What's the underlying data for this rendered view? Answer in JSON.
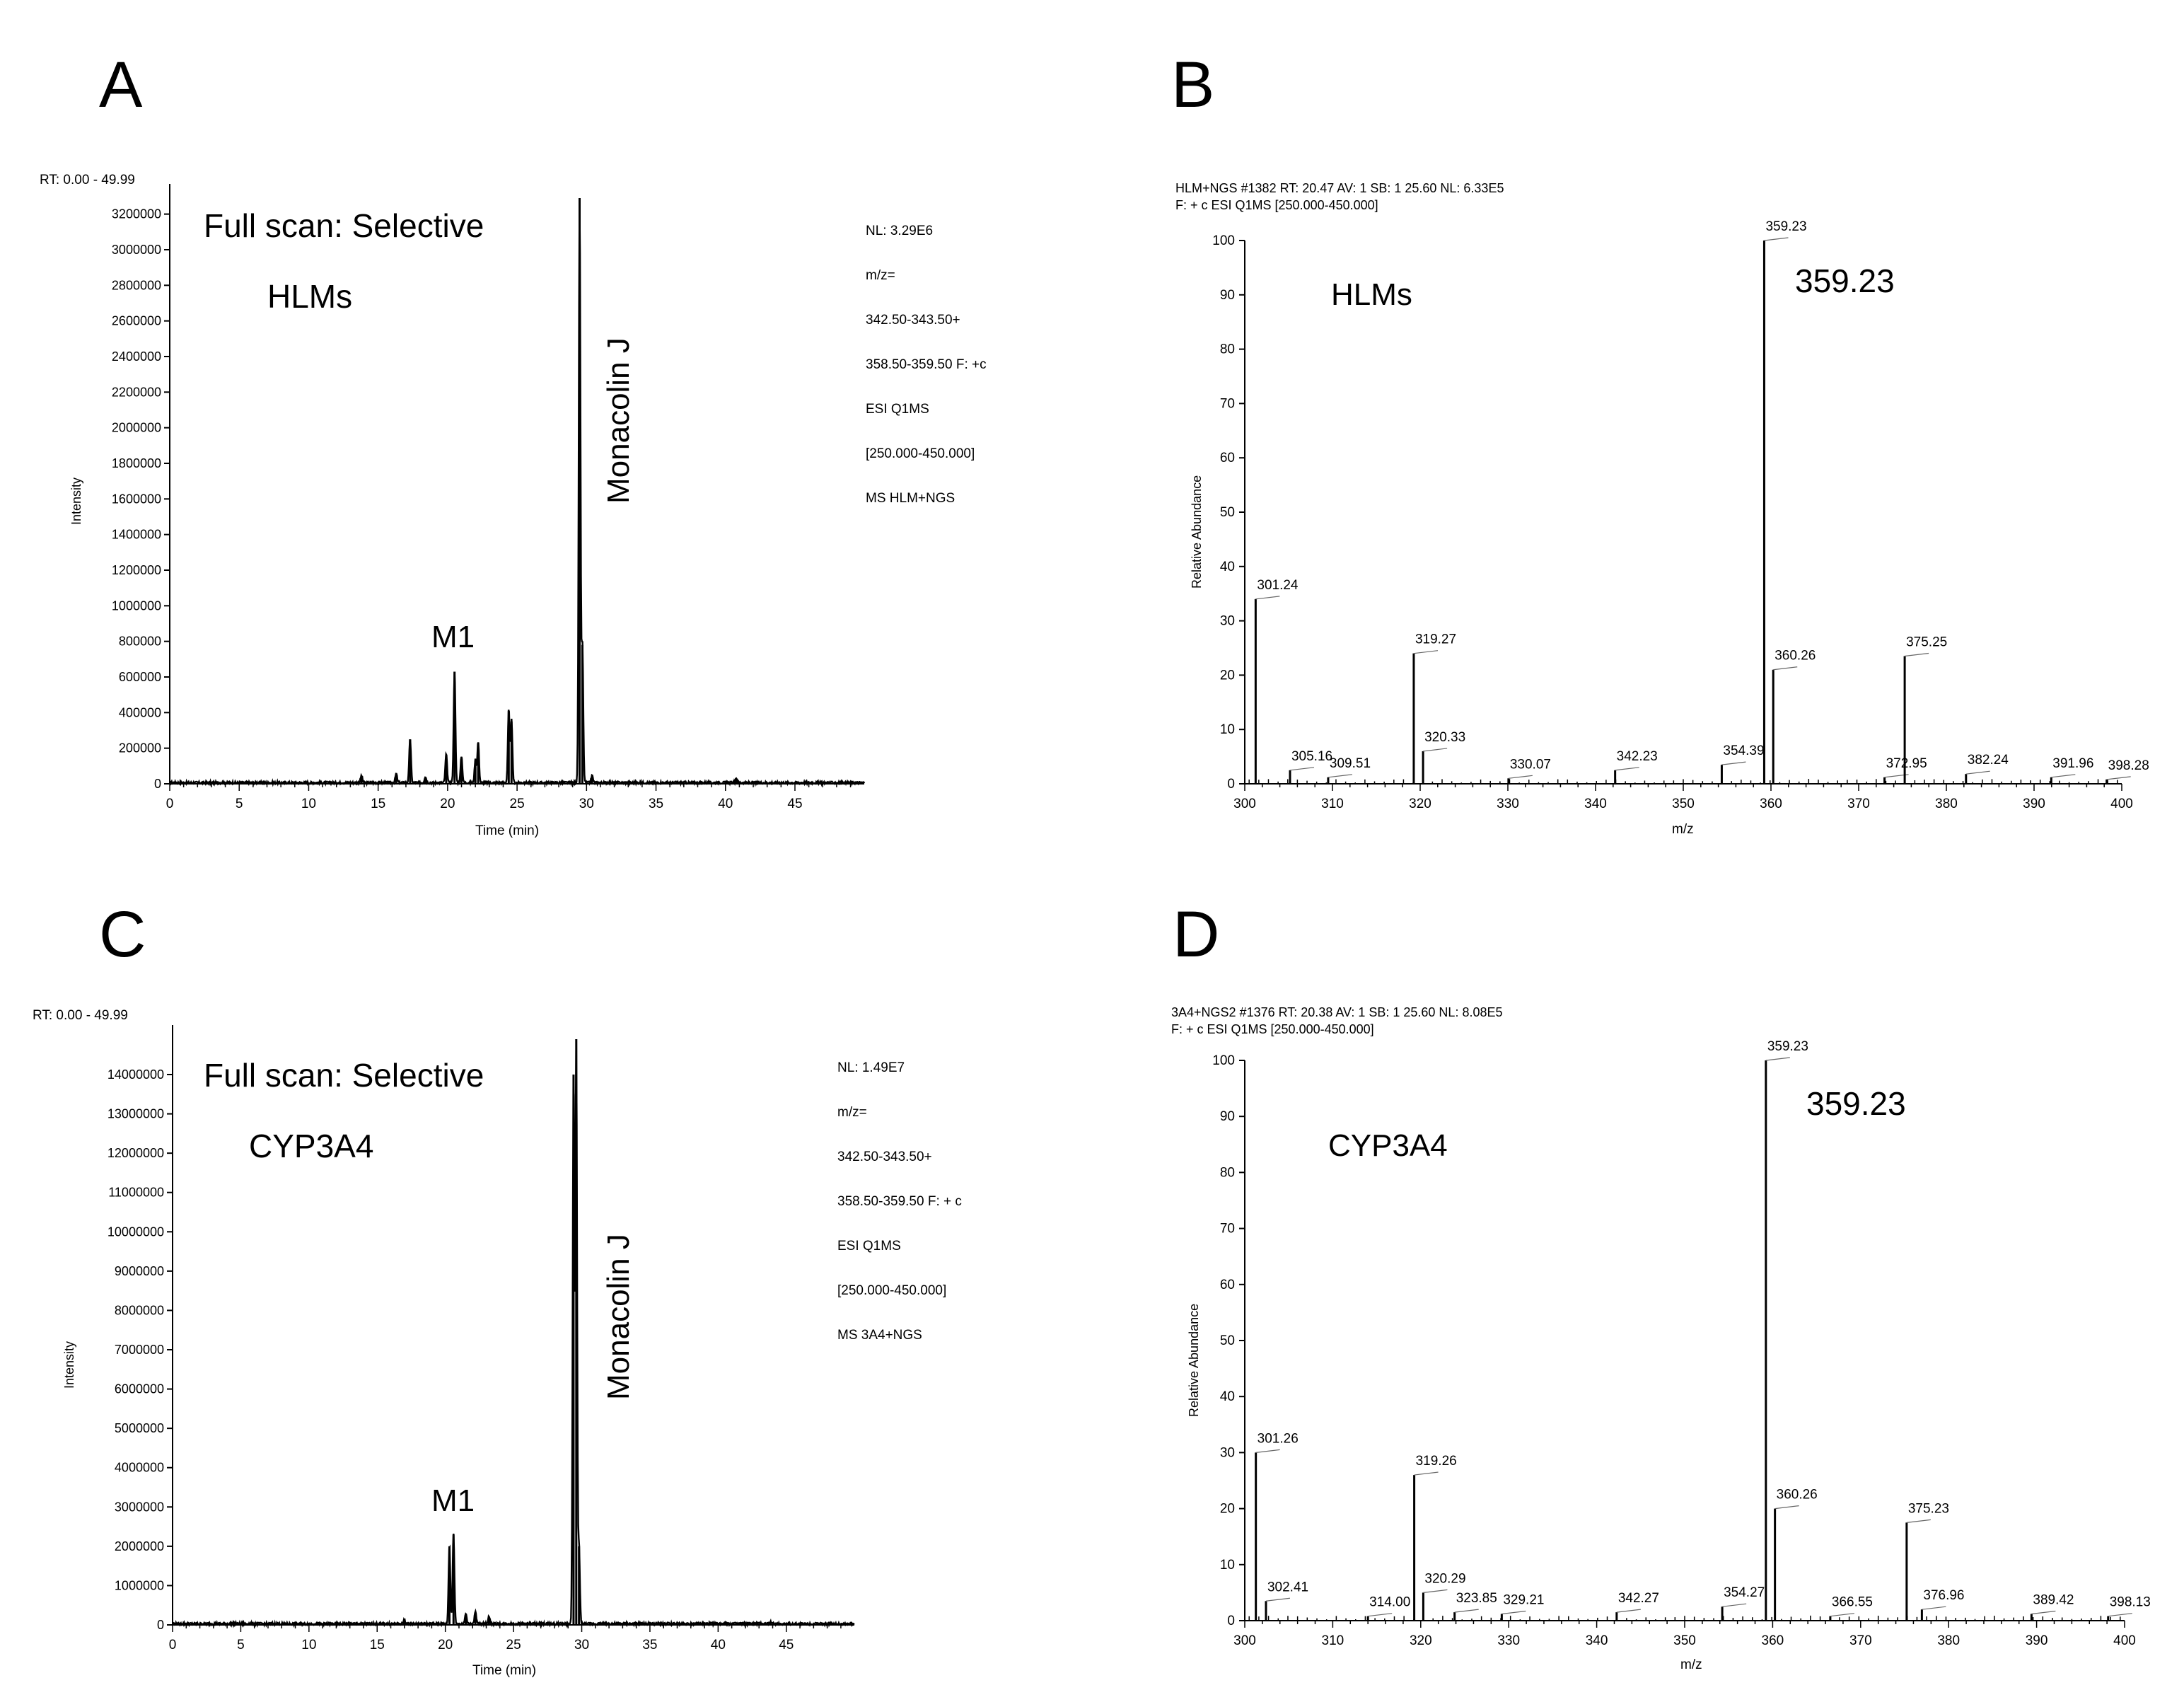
{
  "panels": [
    {
      "letter": "A",
      "kind": "chromatogram",
      "corner_label": "RT: 0.00 - 49.99",
      "info_lines": [
        "NL: 3.29E6",
        "m/z=",
        "342.50-343.50+",
        "358.50-359.50 F: +c",
        "ESI Q1MS",
        "[250.000-450.000]",
        "MS HLM+NGS"
      ],
      "title": "Full scan: Selective",
      "sample": "HLMs",
      "peak_label": "Monacolin J",
      "metabolite_label": "M1",
      "ylabel": "Intensity",
      "xlabel": "Time (min)"
    },
    {
      "letter": "B",
      "kind": "spectrum",
      "header_lines": [
        "HLM+NGS #1382  RT: 20.47  AV: 1  SB: 1 25.60  NL: 6.33E5",
        "F: + c ESI Q1MS [250.000-450.000]"
      ],
      "sample": "HLMs",
      "base_peak_label": "359.23",
      "ylabel": "Relative Abundance",
      "xlabel": "m/z"
    },
    {
      "letter": "C",
      "kind": "chromatogram",
      "corner_label": "RT: 0.00 - 49.99",
      "info_lines": [
        "NL: 1.49E7",
        "m/z=",
        "342.50-343.50+",
        "358.50-359.50 F: + c",
        "ESI Q1MS",
        "[250.000-450.000]",
        "MS 3A4+NGS"
      ],
      "title": "Full scan: Selective",
      "sample": "CYP3A4",
      "peak_label": "Monacolin J",
      "metabolite_label": "M1",
      "ylabel": "Intensity",
      "xlabel": "Time (min)"
    },
    {
      "letter": "D",
      "kind": "spectrum",
      "header_lines": [
        "3A4+NGS2 #1376  RT: 20.38  AV: 1  SB: 1 25.60  NL: 8.08E5",
        "F: + c ESI Q1MS [250.000-450.000]"
      ],
      "sample": "CYP3A4",
      "base_peak_label": "359.23",
      "ylabel": "Relative Abundance",
      "xlabel": "m/z"
    }
  ],
  "chart_data": [
    {
      "panel": "A",
      "type": "line",
      "title": "Full scan: Selective",
      "xlabel": "Time (min)",
      "ylabel": "Intensity",
      "xlim": [
        0,
        49.99
      ],
      "ylim": [
        0,
        3290000
      ],
      "xticks": [
        0,
        5,
        10,
        15,
        20,
        25,
        30,
        35,
        40,
        45
      ],
      "yticks": [
        0,
        200000,
        400000,
        600000,
        800000,
        1000000,
        1200000,
        1400000,
        1600000,
        1800000,
        2000000,
        2200000,
        2400000,
        2600000,
        2800000,
        3000000,
        3200000
      ],
      "peaks": [
        {
          "rt": 13.8,
          "intensity": 40000
        },
        {
          "rt": 16.3,
          "intensity": 50000
        },
        {
          "rt": 17.3,
          "intensity": 250000
        },
        {
          "rt": 18.4,
          "intensity": 35000
        },
        {
          "rt": 19.9,
          "intensity": 160000
        },
        {
          "rt": 20.5,
          "intensity": 630000
        },
        {
          "rt": 21.0,
          "intensity": 150000
        },
        {
          "rt": 22.0,
          "intensity": 130000
        },
        {
          "rt": 22.2,
          "intensity": 230000
        },
        {
          "rt": 24.4,
          "intensity": 410000
        },
        {
          "rt": 24.6,
          "intensity": 350000
        },
        {
          "rt": 29.5,
          "intensity": 3290000
        },
        {
          "rt": 29.7,
          "intensity": 780000
        },
        {
          "rt": 30.4,
          "intensity": 40000
        },
        {
          "rt": 40.8,
          "intensity": 25000
        }
      ],
      "annotations": [
        {
          "text": "Monacolin J",
          "rt": 29.5
        },
        {
          "text": "M1",
          "rt": 20.5
        }
      ]
    },
    {
      "panel": "B",
      "type": "bar",
      "xlabel": "m/z",
      "ylabel": "Relative Abundance",
      "xlim": [
        300,
        400
      ],
      "ylim": [
        0,
        100
      ],
      "xticks": [
        300,
        310,
        320,
        330,
        340,
        350,
        360,
        370,
        380,
        390,
        400
      ],
      "yticks": [
        0,
        10,
        20,
        30,
        40,
        50,
        60,
        70,
        80,
        90,
        100
      ],
      "peaks": [
        {
          "mz": 301.24,
          "abundance": 34,
          "label": "301.24"
        },
        {
          "mz": 305.16,
          "abundance": 2.5,
          "label": "305.16"
        },
        {
          "mz": 309.51,
          "abundance": 1.2,
          "label": "309.51"
        },
        {
          "mz": 319.27,
          "abundance": 24,
          "label": "319.27"
        },
        {
          "mz": 320.33,
          "abundance": 6,
          "label": "320.33"
        },
        {
          "mz": 330.07,
          "abundance": 1,
          "label": "330.07"
        },
        {
          "mz": 342.23,
          "abundance": 2.5,
          "label": "342.23"
        },
        {
          "mz": 354.39,
          "abundance": 3.5,
          "label": "354.39"
        },
        {
          "mz": 359.23,
          "abundance": 100,
          "label": "359.23"
        },
        {
          "mz": 360.26,
          "abundance": 21,
          "label": "360.26"
        },
        {
          "mz": 372.95,
          "abundance": 1.2,
          "label": "372.95"
        },
        {
          "mz": 375.25,
          "abundance": 23.5,
          "label": "375.25"
        },
        {
          "mz": 382.24,
          "abundance": 1.8,
          "label": "382.24"
        },
        {
          "mz": 391.96,
          "abundance": 1.2,
          "label": "391.96"
        },
        {
          "mz": 398.28,
          "abundance": 0.8,
          "label": "398.28"
        }
      ]
    },
    {
      "panel": "C",
      "type": "line",
      "title": "Full scan: Selective",
      "xlabel": "Time (min)",
      "ylabel": "Intensity",
      "xlim": [
        0,
        49.99
      ],
      "ylim": [
        0,
        14900000
      ],
      "xticks": [
        0,
        5,
        10,
        15,
        20,
        25,
        30,
        35,
        40,
        45
      ],
      "yticks": [
        0,
        1000000,
        2000000,
        3000000,
        4000000,
        5000000,
        6000000,
        7000000,
        8000000,
        9000000,
        10000000,
        11000000,
        12000000,
        13000000,
        14000000
      ],
      "peaks": [
        {
          "rt": 17.0,
          "intensity": 100000
        },
        {
          "rt": 20.3,
          "intensity": 2000000
        },
        {
          "rt": 20.6,
          "intensity": 2300000
        },
        {
          "rt": 21.5,
          "intensity": 250000
        },
        {
          "rt": 22.2,
          "intensity": 300000
        },
        {
          "rt": 23.2,
          "intensity": 200000
        },
        {
          "rt": 29.4,
          "intensity": 14000000
        },
        {
          "rt": 29.6,
          "intensity": 14900000
        },
        {
          "rt": 29.8,
          "intensity": 2000000
        },
        {
          "rt": 40.5,
          "intensity": 60000
        },
        {
          "rt": 43.8,
          "intensity": 60000
        }
      ],
      "annotations": [
        {
          "text": "Monacolin J",
          "rt": 29.6
        },
        {
          "text": "M1",
          "rt": 20.6
        }
      ]
    },
    {
      "panel": "D",
      "type": "bar",
      "xlabel": "m/z",
      "ylabel": "Relative Abundance",
      "xlim": [
        300,
        400
      ],
      "ylim": [
        0,
        100
      ],
      "xticks": [
        300,
        310,
        320,
        330,
        340,
        350,
        360,
        370,
        380,
        390,
        400
      ],
      "yticks": [
        0,
        10,
        20,
        30,
        40,
        50,
        60,
        70,
        80,
        90,
        100
      ],
      "peaks": [
        {
          "mz": 301.26,
          "abundance": 30,
          "label": "301.26"
        },
        {
          "mz": 302.41,
          "abundance": 3.5,
          "label": "302.41"
        },
        {
          "mz": 314.0,
          "abundance": 0.8,
          "label": "314.00"
        },
        {
          "mz": 319.26,
          "abundance": 26,
          "label": "319.26"
        },
        {
          "mz": 320.29,
          "abundance": 5,
          "label": "320.29"
        },
        {
          "mz": 323.85,
          "abundance": 1.5,
          "label": "323.85"
        },
        {
          "mz": 329.21,
          "abundance": 1.2,
          "label": "329.21"
        },
        {
          "mz": 342.27,
          "abundance": 1.5,
          "label": "342.27"
        },
        {
          "mz": 354.27,
          "abundance": 2.5,
          "label": "354.27"
        },
        {
          "mz": 359.23,
          "abundance": 100,
          "label": "359.23"
        },
        {
          "mz": 360.26,
          "abundance": 20,
          "label": "360.26"
        },
        {
          "mz": 366.55,
          "abundance": 0.8,
          "label": "366.55"
        },
        {
          "mz": 375.23,
          "abundance": 17.5,
          "label": "375.23"
        },
        {
          "mz": 376.96,
          "abundance": 2,
          "label": "376.96"
        },
        {
          "mz": 389.42,
          "abundance": 1.2,
          "label": "389.42"
        },
        {
          "mz": 398.13,
          "abundance": 0.8,
          "label": "398.13"
        }
      ]
    }
  ]
}
